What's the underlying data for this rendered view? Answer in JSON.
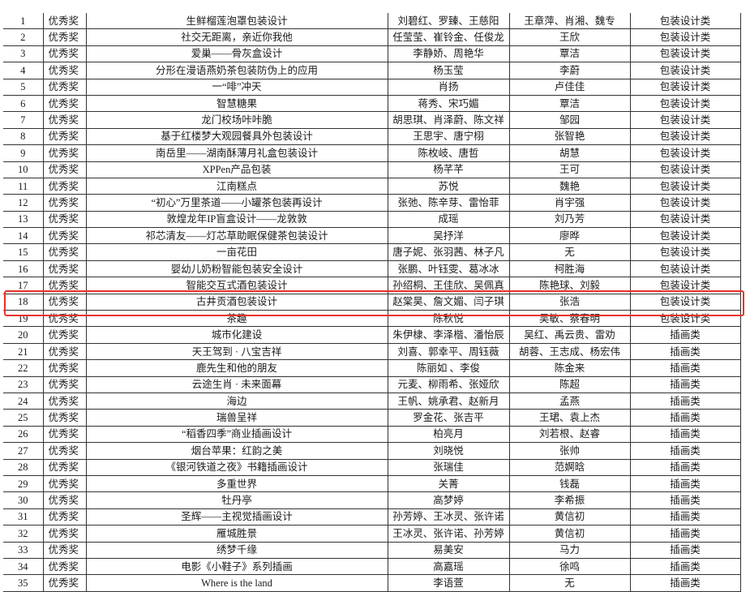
{
  "highlight_color": "#e8322b",
  "highlighted_row": 19,
  "rows": [
    {
      "no": "1",
      "award": "优秀奖",
      "title": "生鲜榴莲泡罩包装设计",
      "authors": "刘碧红、罗臻、王慈阳",
      "advisor": "王章萍、肖湘、魏专",
      "category": "包装设计类"
    },
    {
      "no": "2",
      "award": "优秀奖",
      "title": "社交无距离，亲近你我他",
      "authors": "任莹莹、崔铃金、任俊龙",
      "advisor": "王欣",
      "category": "包装设计类"
    },
    {
      "no": "3",
      "award": "优秀奖",
      "title": "爱巢——骨灰盒设计",
      "authors": "李静娇、周艳华",
      "advisor": "覃洁",
      "category": "包装设计类"
    },
    {
      "no": "4",
      "award": "优秀奖",
      "title": "分形在漫语燕奶茶包装防伪上的应用",
      "authors": "杨玉莹",
      "advisor": "李蔚",
      "category": "包装设计类"
    },
    {
      "no": "5",
      "award": "优秀奖",
      "title": "一“啡”冲天",
      "authors": "肖扬",
      "advisor": "卢佳佳",
      "category": "包装设计类"
    },
    {
      "no": "6",
      "award": "优秀奖",
      "title": "智慧糖果",
      "authors": "蒋秀、宋巧媚",
      "advisor": "覃洁",
      "category": "包装设计类"
    },
    {
      "no": "7",
      "award": "优秀奖",
      "title": "龙门校场咔咔脆",
      "authors": "胡思琪、肖泽蔚、陈文祥",
      "advisor": "邹园",
      "category": "包装设计类"
    },
    {
      "no": "8",
      "award": "优秀奖",
      "title": "基于红楼梦大观园餐具外包装设计",
      "authors": "王思宇、唐宁栩",
      "advisor": "张智艳",
      "category": "包装设计类"
    },
    {
      "no": "9",
      "award": "优秀奖",
      "title": "南岳里——湖南酥薄月礼盒包装设计",
      "authors": "陈枚岐、唐哲",
      "advisor": "胡慧",
      "category": "包装设计类"
    },
    {
      "no": "10",
      "award": "优秀奖",
      "title": "XPPen产品包装",
      "authors": "杨芊芊",
      "advisor": "王可",
      "category": "包装设计类"
    },
    {
      "no": "11",
      "award": "优秀奖",
      "title": "江南糕点",
      "authors": "苏悦",
      "advisor": "魏艳",
      "category": "包装设计类"
    },
    {
      "no": "12",
      "award": "优秀奖",
      "title": "“初心”万里茶道——小罐茶包装再设计",
      "authors": "张弛、陈辛芽、雷怡菲",
      "advisor": "肖宇强",
      "category": "包装设计类"
    },
    {
      "no": "13",
      "award": "优秀奖",
      "title": "敦煌龙年IP盲盒设计——龙敦敦",
      "authors": "成瑶",
      "advisor": "刘乃芳",
      "category": "包装设计类"
    },
    {
      "no": "14",
      "award": "优秀奖",
      "title": "祁芯清友——灯芯草助眠保健茶包装设计",
      "authors": "吴抒洋",
      "advisor": "廖晔",
      "category": "包装设计类"
    },
    {
      "no": "15",
      "award": "优秀奖",
      "title": "一亩花田",
      "authors": "唐子妮、张羽茜、林子凡",
      "advisor": "无",
      "category": "包装设计类"
    },
    {
      "no": "16",
      "award": "优秀奖",
      "title": "婴幼儿奶粉智能包装安全设计",
      "authors": "张鹏、叶钰雯、葛冰冰",
      "advisor": "柯胜海",
      "category": "包装设计类"
    },
    {
      "no": "17",
      "award": "优秀奖",
      "title": "智能交互式酒包装设计",
      "authors": "孙绍桐、王佳欣、吴佩真",
      "advisor": "陈艳球、刘毅",
      "category": "包装设计类"
    },
    {
      "no": "18",
      "award": "优秀奖",
      "title": "古井贡酒包装设计",
      "authors": "赵棠昊、詹文媚、闫子琪",
      "advisor": "张浩",
      "category": "包装设计类"
    },
    {
      "no": "19",
      "award": "优秀奖",
      "title": "茶趣",
      "authors": "陈秋悦",
      "advisor": "吴敏、蔡春明",
      "category": "包装设计类"
    },
    {
      "no": "20",
      "award": "优秀奖",
      "title": "城市化建设",
      "authors": "朱伊棣、李泽楷、潘怡辰",
      "advisor": "吴红、禹云贵、雷劝",
      "category": "插画类"
    },
    {
      "no": "21",
      "award": "优秀奖",
      "title": "天王驾到 · 八宝吉祥",
      "authors": "刘喜、郭幸平、周钰薇",
      "advisor": "胡蓉、王志成、杨宏伟",
      "category": "插画类"
    },
    {
      "no": "22",
      "award": "优秀奖",
      "title": "鹿先生和他的朋友",
      "authors": "陈丽如 、李俊",
      "advisor": "陈金来",
      "category": "插画类"
    },
    {
      "no": "23",
      "award": "优秀奖",
      "title": "云途生肖 · 未来面幕",
      "authors": "元麦、柳雨希、张娅欣",
      "advisor": "陈超",
      "category": "插画类"
    },
    {
      "no": "24",
      "award": "优秀奖",
      "title": "海边",
      "authors": "王帆、姚承君、赵新月",
      "advisor": "孟燕",
      "category": "插画类"
    },
    {
      "no": "25",
      "award": "优秀奖",
      "title": "瑞兽呈祥",
      "authors": "罗金花、张吉平",
      "advisor": "王珺、袁上杰",
      "category": "插画类"
    },
    {
      "no": "26",
      "award": "优秀奖",
      "title": "“稻香四季”商业插画设计",
      "authors": "柏亮月",
      "advisor": "刘若根、赵睿",
      "category": "插画类"
    },
    {
      "no": "27",
      "award": "优秀奖",
      "title": "烟台苹果：红韵之美",
      "authors": "刘晓悦",
      "advisor": "张帅",
      "category": "插画类"
    },
    {
      "no": "28",
      "award": "优秀奖",
      "title": "《银河铁道之夜》书籍插画设计",
      "authors": "张瑞佳",
      "advisor": "范婀晗",
      "category": "插画类"
    },
    {
      "no": "29",
      "award": "优秀奖",
      "title": "多重世界",
      "authors": "关菁",
      "advisor": "钱磊",
      "category": "插画类"
    },
    {
      "no": "30",
      "award": "优秀奖",
      "title": "牡丹亭",
      "authors": "高梦婷",
      "advisor": "李希振",
      "category": "插画类"
    },
    {
      "no": "31",
      "award": "优秀奖",
      "title": "圣辉——主视觉插画设计",
      "authors": "孙芳婷、王冰灵、张许诺",
      "advisor": "黄信初",
      "category": "插画类"
    },
    {
      "no": "32",
      "award": "优秀奖",
      "title": "雁城胜景",
      "authors": "王冰灵、张许诺、孙芳婷",
      "advisor": "黄信初",
      "category": "插画类"
    },
    {
      "no": "33",
      "award": "优秀奖",
      "title": "绣梦千缘",
      "authors": "易美安",
      "advisor": "马力",
      "category": "插画类"
    },
    {
      "no": "34",
      "award": "优秀奖",
      "title": "电影《小鞋子》系列插画",
      "authors": "高嘉瑶",
      "advisor": "徐鸣",
      "category": "插画类"
    },
    {
      "no": "35",
      "award": "优秀奖",
      "title": "Where is the land",
      "authors": "李语萱",
      "advisor": "无",
      "category": "插画类"
    }
  ]
}
